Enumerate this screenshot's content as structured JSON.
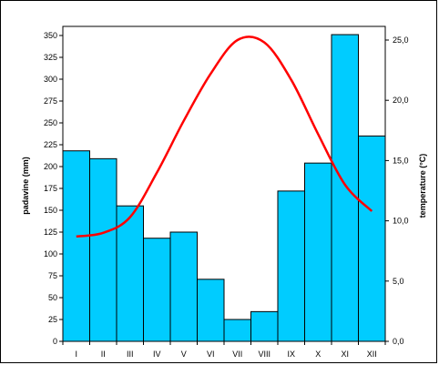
{
  "chart_data": {
    "type": "bar+line",
    "categories": [
      "I",
      "II",
      "III",
      "IV",
      "V",
      "VI",
      "VII",
      "VIII",
      "IX",
      "X",
      "XI",
      "XII"
    ],
    "bar_series": {
      "name": "padavine (mm)",
      "values": [
        218,
        209,
        155,
        118,
        125,
        71,
        25,
        34,
        172,
        204,
        351,
        235
      ],
      "color": "#00CCFF"
    },
    "line_series": {
      "name": "temperature (°C)",
      "values": [
        8.7,
        9.0,
        10.3,
        14.0,
        18.3,
        22.2,
        25.0,
        24.8,
        21.7,
        17.2,
        13.0,
        10.8
      ],
      "color": "#FF0000"
    },
    "left_axis": {
      "label": "padavine (mm)",
      "range": [
        0,
        350
      ],
      "ticks": [
        "0",
        "25",
        "50",
        "75",
        "100",
        "125",
        "150",
        "175",
        "200",
        "225",
        "250",
        "275",
        "300",
        "325",
        "350"
      ]
    },
    "right_axis": {
      "label": "temperature (°C)",
      "range": [
        0,
        25.5
      ],
      "ticks": [
        "0,0",
        "5,0",
        "10,0",
        "15,0",
        "20,0",
        "25,0"
      ]
    },
    "grid": false,
    "legend": "none"
  }
}
